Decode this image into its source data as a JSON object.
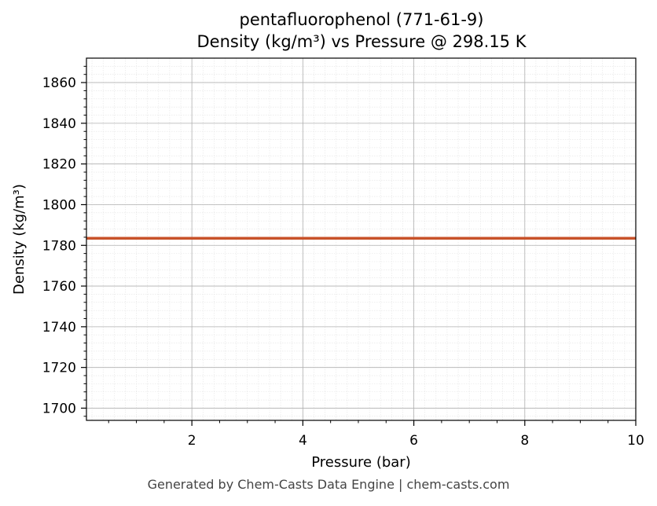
{
  "chart_data": {
    "type": "line",
    "title": "pentafluorophenol (771-61-9)",
    "subtitle": "Density (kg/m³) vs Pressure @ 298.15 K",
    "xlabel": "Pressure (bar)",
    "ylabel": "Density (kg/m³)",
    "xlim": [
      0.1,
      10
    ],
    "ylim": [
      1694,
      1872
    ],
    "x_ticks": [
      2,
      4,
      6,
      8,
      10
    ],
    "y_ticks": [
      1700,
      1720,
      1740,
      1760,
      1780,
      1800,
      1820,
      1840,
      1860
    ],
    "grid": true,
    "series": [
      {
        "color": "#c8522a",
        "x": [
          0.1,
          10
        ],
        "y": [
          1783.5,
          1783.5
        ]
      }
    ]
  },
  "footer": "Generated by Chem-Casts Data Engine | chem-casts.com"
}
